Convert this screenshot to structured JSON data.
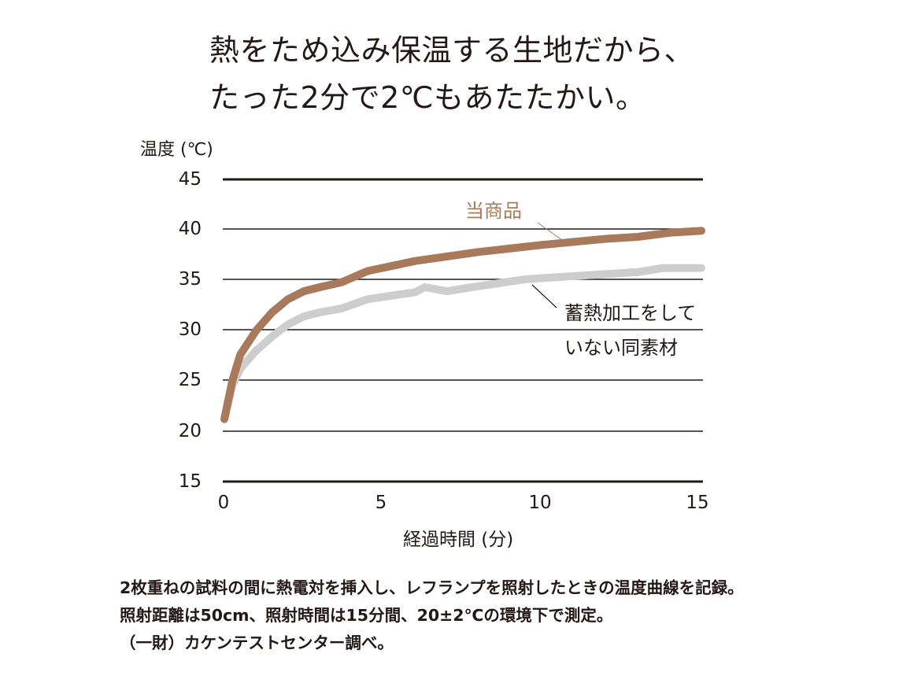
{
  "headline": {
    "line1": "熱をため込み保温する生地だから、",
    "line2": "たった2分で2℃もあたたかい。"
  },
  "colors": {
    "product": "#A8795A",
    "untreated": "#CDCDCD",
    "grid": "#231815",
    "text": "#231815"
  },
  "notes": {
    "line1": "2枚重ねの試料の間に熱電対を挿入し、レフランプを照射したときの温度曲線を記録。",
    "line2": "照射距離は50cm、照射時間は15分間、20±2℃の環境下で測定。",
    "line3": "（一財）カケンテストセンター調べ。"
  },
  "chart_data": {
    "type": "line",
    "title": "熱をため込み保温する生地だから、たった2分で2℃もあたたかい。",
    "xlabel": "経過時間 (分)",
    "ylabel": "温度 (℃)",
    "xlim": [
      0,
      15
    ],
    "ylim": [
      15,
      45
    ],
    "xticks": [
      "0",
      "5",
      "10",
      "15"
    ],
    "yticks": [
      "45",
      "40",
      "35",
      "30",
      "25",
      "20",
      "15"
    ],
    "grid": "horizontal",
    "legend_position": "inline annotations",
    "series": [
      {
        "name": "当商品",
        "color": "#A8795A",
        "x": [
          0,
          0.25,
          0.5,
          1,
          1.5,
          2,
          2.5,
          3,
          3.7,
          4.5,
          6,
          8,
          10,
          12,
          13,
          14,
          15
        ],
        "values": [
          21.2,
          25.0,
          27.6,
          30.0,
          31.8,
          33.1,
          33.9,
          34.3,
          34.8,
          35.9,
          36.9,
          37.8,
          38.5,
          39.1,
          39.3,
          39.7,
          39.9
        ]
      },
      {
        "name": "蓄熱加工をしていない同素材",
        "color": "#CDCDCD",
        "x": [
          0,
          0.25,
          0.5,
          1,
          1.5,
          2,
          2.5,
          3,
          3.7,
          4.5,
          6,
          6.3,
          7,
          8,
          9.5,
          11,
          13,
          13.8,
          15
        ],
        "values": [
          21.2,
          24.5,
          26.2,
          28.0,
          29.4,
          30.6,
          31.4,
          31.8,
          32.2,
          33.1,
          33.8,
          34.3,
          33.9,
          34.4,
          35.1,
          35.4,
          35.8,
          36.2,
          36.2
        ]
      }
    ],
    "annotations": [
      {
        "text": "当商品",
        "series": 0
      },
      {
        "text": "蓄熱加工をしていない同素材",
        "series": 1
      }
    ]
  }
}
